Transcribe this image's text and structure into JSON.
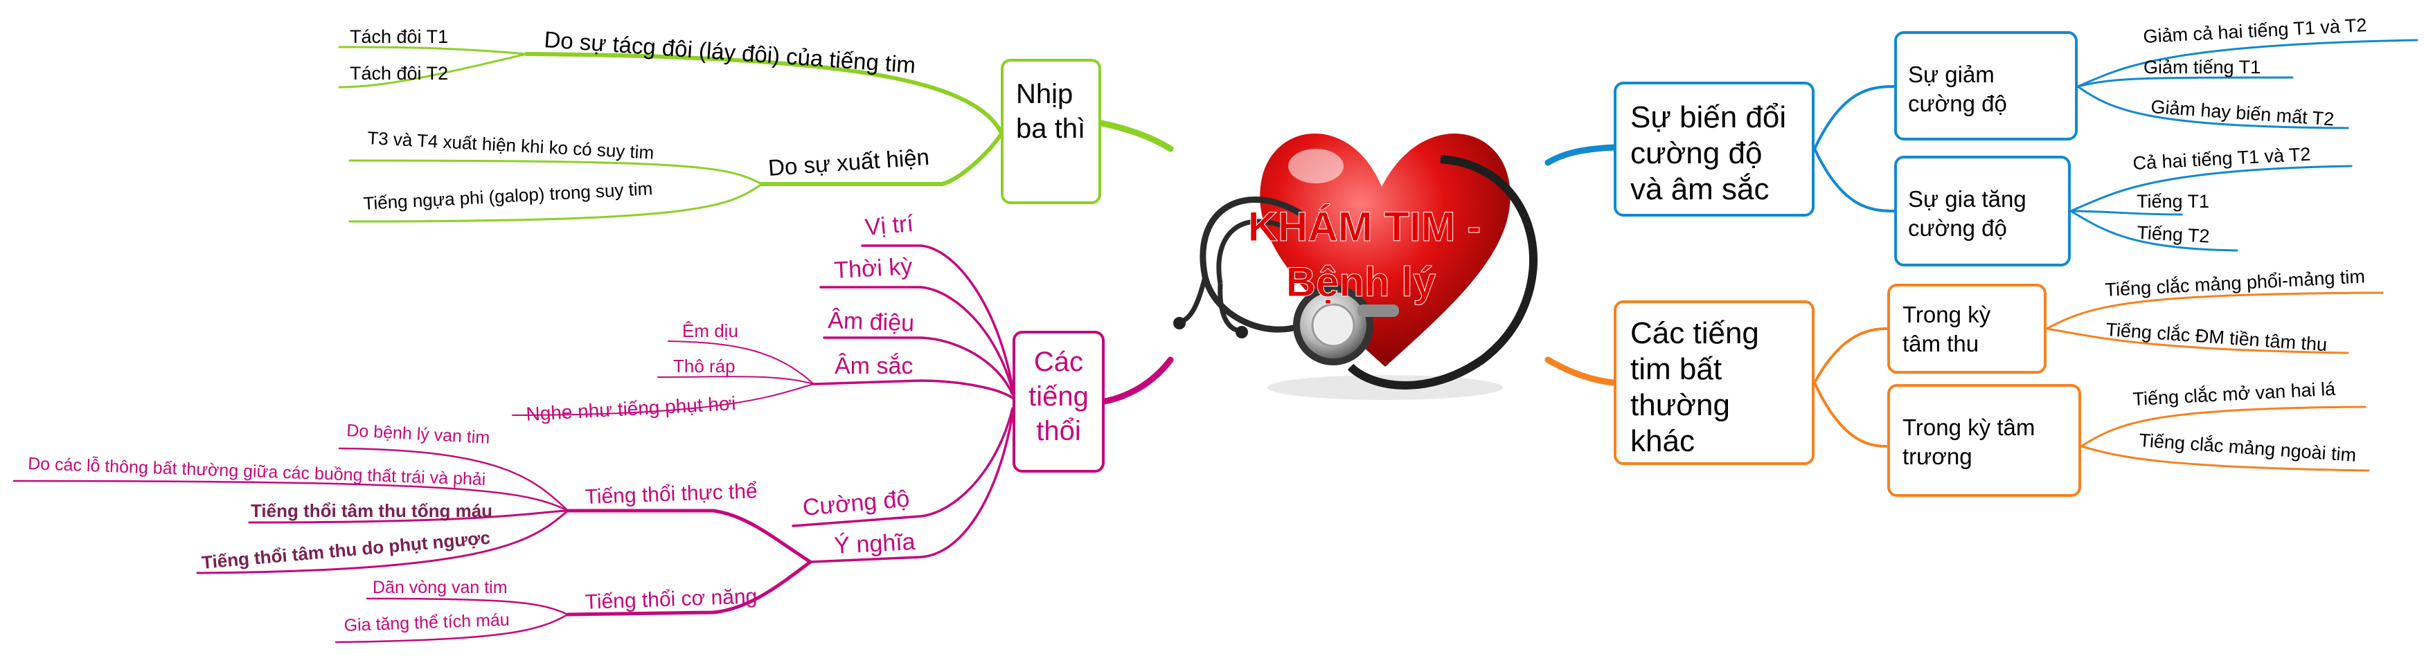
{
  "center": {
    "title_line1": "KHÁM TIM -",
    "title_line2": "Bệnh lý",
    "title_color": "#e00000",
    "icon": "heart-stethoscope-icon"
  },
  "colors": {
    "green": "#8cd026",
    "magenta": "#c4087c",
    "blue": "#1289d0",
    "orange": "#f58220",
    "bold_leaf": "#7a2050"
  },
  "nhip_ba_thi": {
    "title": "Nhịp ba thì",
    "branch1": {
      "label": "Do sự tácg đôi (láy đôi) của tiếng tim",
      "leaves": [
        "Tách đôi T1",
        "Tách đôi T2"
      ]
    },
    "branch2": {
      "label": "Do sự xuất hiện",
      "leaves": [
        "T3 và T4 xuất hiện khi ko có suy tim",
        "Tiếng ngựa phi (galop) trong suy tim"
      ]
    }
  },
  "tieng_thoi": {
    "title": "Các tiếng thổi",
    "vi_tri": "Vị trí",
    "thoi_ky": "Thời kỳ",
    "am_dieu": "Âm điệu",
    "am_sac": {
      "label": "Âm sắc",
      "leaves": [
        "Êm dịu",
        "Thô ráp",
        "Nghe như tiếng phụt hơi"
      ]
    },
    "cuong_do": "Cường độ",
    "y_nghia": {
      "label": "Ý nghĩa",
      "thuc_the": {
        "label": "Tiếng thổi thực thể",
        "leaves": [
          "Do bệnh lý van tim",
          "Do các lỗ thông bất thường giữa các buồng thất trái và phải",
          "Tiếng thổi tâm thu tống máu",
          "Tiếng thổi tâm thu do phụt ngược"
        ]
      },
      "co_nang": {
        "label": "Tiếng thổi cơ năng",
        "leaves": [
          "Dãn vòng van tim",
          "Gia tăng thể tích máu"
        ]
      }
    }
  },
  "bien_doi": {
    "title": "Sự biến đổi cường độ và âm sắc",
    "giam": {
      "label": "Sự giảm cường độ",
      "leaves": [
        "Giảm cả hai tiếng T1 và T2",
        "Giảm tiếng T1",
        "Giảm hay biến mất T2"
      ]
    },
    "tang": {
      "label": "Sự gia tăng cường độ",
      "leaves": [
        "Cả hai tiếng T1 và T2",
        "Tiếng T1",
        "Tiếng T2"
      ]
    }
  },
  "bat_thuong": {
    "title": "Các tiếng tim bất thường khác",
    "tam_thu": {
      "label": "Trong kỳ tâm thu",
      "leaves": [
        "Tiếng clắc mảng phổi-mảng tim",
        "Tiếng clắc ĐM tiền tâm thu"
      ]
    },
    "tam_truong": {
      "label": "Trong kỳ tâm trương",
      "leaves": [
        "Tiếng clắc mở van hai lá",
        "Tiếng clắc mảng ngoài tim"
      ]
    }
  }
}
